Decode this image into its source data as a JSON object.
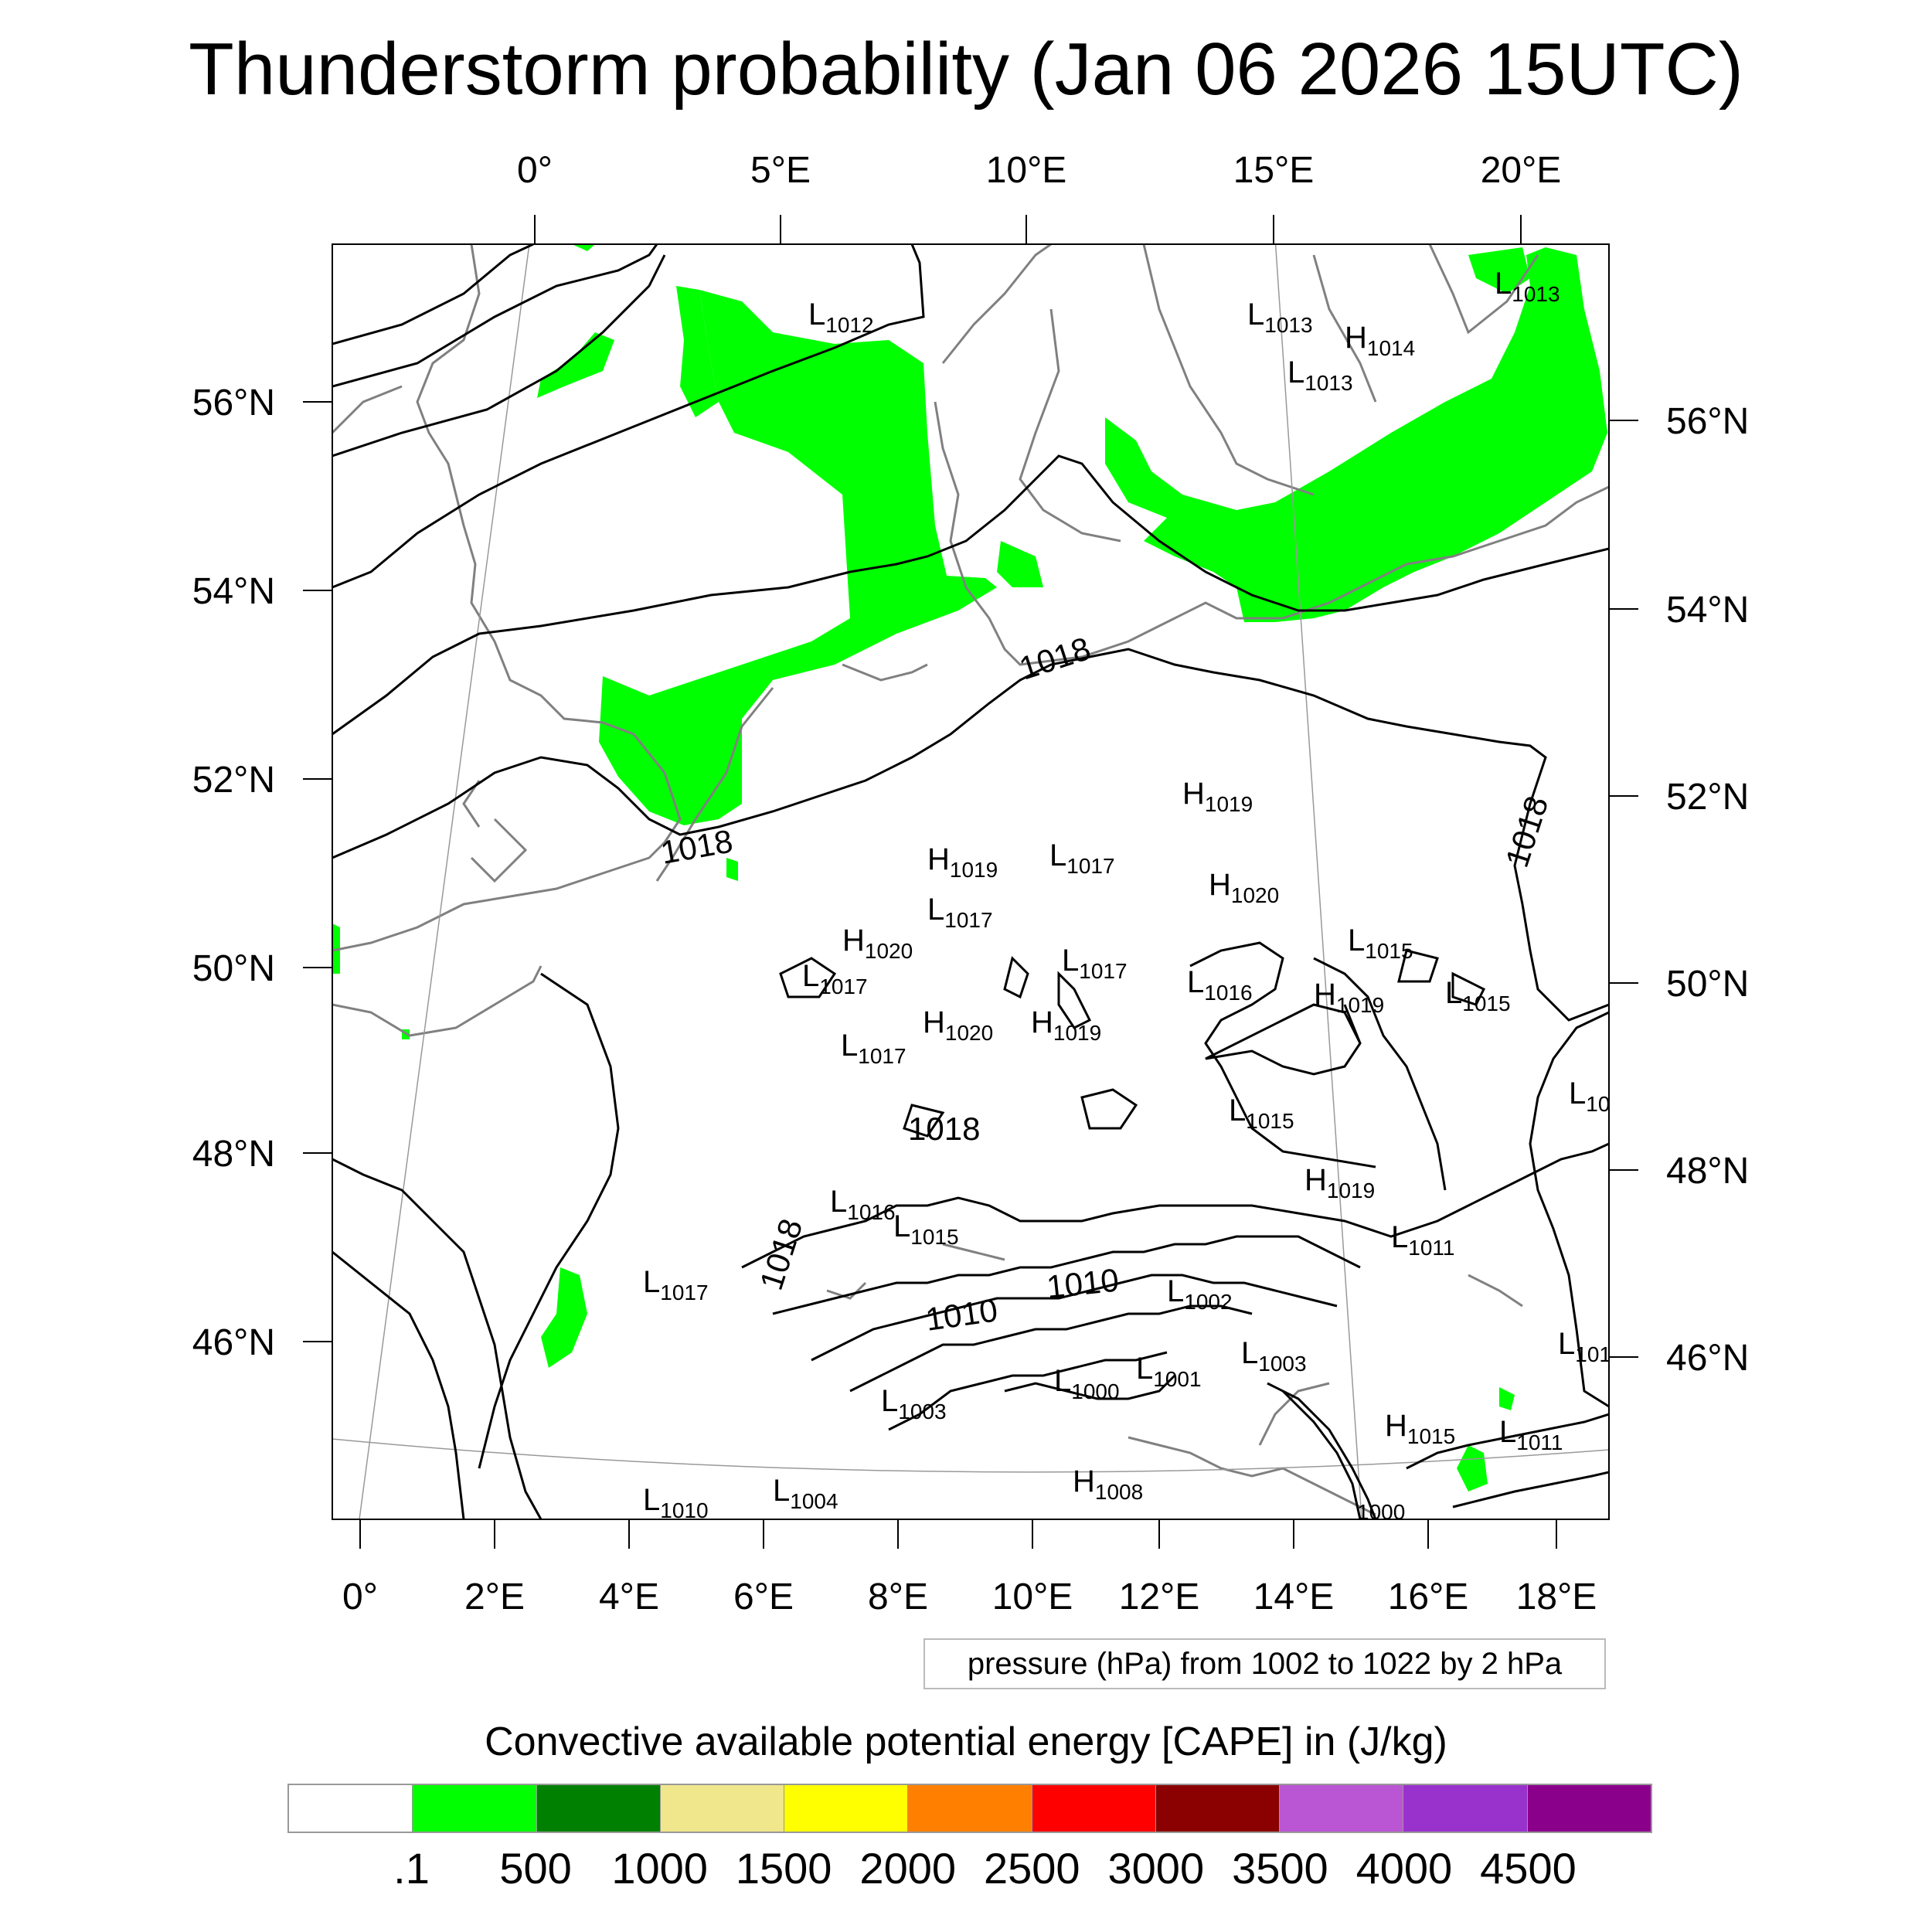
{
  "title": "Thunderstorm probability (Jan 06 2026 15UTC)",
  "map": {
    "top_lon_labels": [
      "0°",
      "5°E",
      "10°E",
      "15°E",
      "20°E"
    ],
    "bottom_lon_labels": [
      "0°",
      "2°E",
      "4°E",
      "6°E",
      "8°E",
      "10°E",
      "12°E",
      "14°E",
      "16°E",
      "18°E"
    ],
    "left_lat_labels": [
      "56°N",
      "54°N",
      "52°N",
      "50°N",
      "48°N",
      "46°N"
    ],
    "right_lat_labels": [
      "56°N",
      "54°N",
      "52°N",
      "50°N",
      "48°N",
      "46°N"
    ],
    "contour_labels": [
      "1018",
      "1018",
      "1018",
      "1018",
      "1018",
      "1010",
      "1010"
    ],
    "pressure_centers": [
      {
        "type": "L",
        "value": "1012"
      },
      {
        "type": "L",
        "value": "1013"
      },
      {
        "type": "L",
        "value": "1013"
      },
      {
        "type": "H",
        "value": "1014"
      },
      {
        "type": "L",
        "value": "1013"
      },
      {
        "type": "H",
        "value": "1019"
      },
      {
        "type": "L",
        "value": "1017"
      },
      {
        "type": "H",
        "value": "1019"
      },
      {
        "type": "L",
        "value": "1017"
      },
      {
        "type": "H",
        "value": "1020"
      },
      {
        "type": "H",
        "value": "1020"
      },
      {
        "type": "L",
        "value": "1015"
      },
      {
        "type": "L",
        "value": "1017"
      },
      {
        "type": "L",
        "value": "1017"
      },
      {
        "type": "L",
        "value": "1016"
      },
      {
        "type": "H",
        "value": "1019"
      },
      {
        "type": "L",
        "value": "1015"
      },
      {
        "type": "L",
        "value": "1017"
      },
      {
        "type": "H",
        "value": "1020"
      },
      {
        "type": "H",
        "value": "1019"
      },
      {
        "type": "L",
        "value": "10"
      },
      {
        "type": "L",
        "value": "1015"
      },
      {
        "type": "H",
        "value": "1019"
      },
      {
        "type": "L",
        "value": "1016"
      },
      {
        "type": "L",
        "value": "1015"
      },
      {
        "type": "L",
        "value": "1011"
      },
      {
        "type": "L",
        "value": "1017"
      },
      {
        "type": "L",
        "value": "1002"
      },
      {
        "type": "L",
        "value": "101"
      },
      {
        "type": "L",
        "value": "1003"
      },
      {
        "type": "L",
        "value": "1001"
      },
      {
        "type": "L",
        "value": "1000"
      },
      {
        "type": "L",
        "value": "1003"
      },
      {
        "type": "H",
        "value": "1015"
      },
      {
        "type": "L",
        "value": "1011"
      },
      {
        "type": "H",
        "value": "1008"
      },
      {
        "type": "L",
        "value": "1010"
      },
      {
        "type": "L",
        "value": "1004"
      },
      {
        "type": "",
        "value": "1000"
      }
    ]
  },
  "info_box": "pressure (hPa) from 1002 to 1022 by 2 hPa",
  "colorbar": {
    "title": "Convective available potential energy [CAPE] in (J/kg)",
    "colors": [
      "#ffffff",
      "#00ff00",
      "#008000",
      "#f0e68c",
      "#ffff00",
      "#ff8000",
      "#ff0000",
      "#8b0000",
      "#ba55d3",
      "#9932cc",
      "#8b008b"
    ],
    "labels": [
      ".1",
      "500",
      "1000",
      "1500",
      "2000",
      "2500",
      "3000",
      "3500",
      "4000",
      "4500"
    ]
  }
}
